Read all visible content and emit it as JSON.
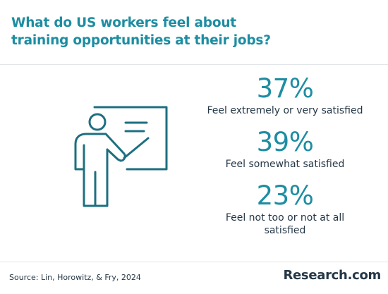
{
  "chart_data": {
    "type": "table",
    "title_lines": [
      "What do US workers feel about",
      "training opportunities at their jobs?"
    ],
    "stats": [
      {
        "value": "37%",
        "label": "Feel extremely or very satisfied",
        "percent": 37
      },
      {
        "value": "39%",
        "label": "Feel somewhat satisfied",
        "percent": 39
      },
      {
        "value": "23%",
        "label_lines": [
          "Feel not too or not at all",
          "satisfied"
        ],
        "percent": 23
      }
    ],
    "source": "Source: Lin, Horowitz, & Fry, 2024"
  },
  "brand": "Research.com",
  "colors": {
    "accent": "#1d8da2",
    "text": "#243746"
  },
  "icons": [
    "teacher-presentation-icon"
  ]
}
